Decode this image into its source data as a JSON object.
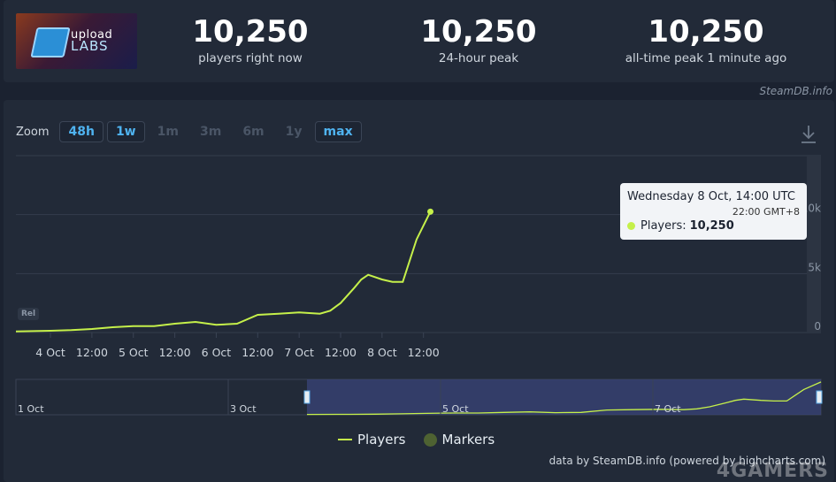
{
  "header": {
    "logo_text_top": "upload",
    "logo_text_bottom": "LABS",
    "stats": [
      {
        "value": "10,250",
        "label": "players right now"
      },
      {
        "value": "10,250",
        "label": "24-hour peak"
      },
      {
        "value": "10,250",
        "label": "all-time peak 1 minute ago"
      }
    ],
    "source": "SteamDB.info"
  },
  "zoom": {
    "label": "Zoom",
    "options": [
      {
        "label": "48h",
        "active": true
      },
      {
        "label": "1w",
        "active": true
      },
      {
        "label": "1m",
        "active": false
      },
      {
        "label": "3m",
        "active": false
      },
      {
        "label": "6m",
        "active": false
      },
      {
        "label": "1y",
        "active": false
      },
      {
        "label": "max",
        "active": true
      }
    ],
    "download_icon": "download-icon"
  },
  "rel_tag": "Rel",
  "tooltip": {
    "date": "Wednesday 8 Oct, 14:00 UTC",
    "local": "22:00 GMT+8",
    "series": "Players:",
    "value": "10,250"
  },
  "legend": {
    "players": "Players",
    "markers": "Markers"
  },
  "footer": {
    "credit": "data by SteamDB.info (powered by highcharts.com)",
    "watermark": "4GAMERS"
  },
  "colors": {
    "line": "#c5f04a",
    "background": "#1b2230",
    "panel": "#222a38",
    "accent": "#4fb3f0"
  },
  "chart_data": {
    "type": "line",
    "series": [
      {
        "name": "Players",
        "x": [
          "3 Oct 14:00",
          "4 Oct 00:00",
          "4 Oct 06:00",
          "4 Oct 12:00",
          "4 Oct 18:00",
          "5 Oct 00:00",
          "5 Oct 06:00",
          "5 Oct 12:00",
          "5 Oct 18:00",
          "6 Oct 00:00",
          "6 Oct 06:00",
          "6 Oct 12:00",
          "6 Oct 18:00",
          "7 Oct 00:00",
          "7 Oct 06:00",
          "7 Oct 09:00",
          "7 Oct 12:00",
          "7 Oct 16:00",
          "7 Oct 18:00",
          "7 Oct 20:00",
          "8 Oct 00:00",
          "8 Oct 03:00",
          "8 Oct 06:00",
          "8 Oct 08:00",
          "8 Oct 10:00",
          "8 Oct 14:00"
        ],
        "values": [
          100,
          150,
          200,
          300,
          450,
          550,
          550,
          750,
          900,
          650,
          750,
          1500,
          1600,
          1700,
          1600,
          1850,
          2500,
          3800,
          4500,
          4900,
          4500,
          4300,
          4300,
          6100,
          7900,
          10250
        ]
      }
    ],
    "x_ticks": [
      "4 Oct",
      "12:00",
      "5 Oct",
      "12:00",
      "6 Oct",
      "12:00",
      "7 Oct",
      "12:00",
      "8 Oct",
      "12:00"
    ],
    "y_ticks": [
      "0",
      "5k",
      "10k"
    ],
    "ylim": [
      0,
      15000
    ],
    "navigator_labels": [
      "1 Oct",
      "3 Oct",
      "5 Oct",
      "7 Oct"
    ],
    "grid": true,
    "legend_position": "bottom"
  }
}
